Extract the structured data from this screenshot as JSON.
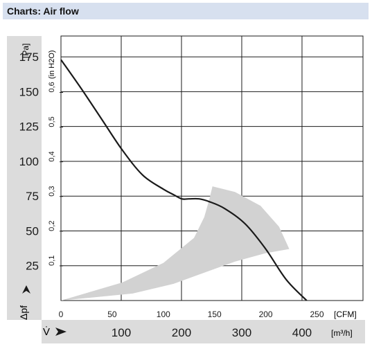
{
  "header": {
    "title": "Charts: Air flow"
  },
  "chart_data": {
    "type": "line",
    "y_unit_pa": "[Pa]",
    "y_unit_inh2o": "(in H2O)",
    "y_ticks_pa": [
      "25",
      "50",
      "75",
      "100",
      "125",
      "150",
      "175"
    ],
    "y_ticks_inh2o": [
      "0,1",
      "0,2",
      "0,3",
      "0,4",
      "0,5",
      "0,6"
    ],
    "y_symbol": "Δpf",
    "x_unit_cfm": "[CFM]",
    "x_unit_m3h": "[m³/h]",
    "x_ticks_cfm": [
      "0",
      "50",
      "100",
      "150",
      "200",
      "250"
    ],
    "x_ticks_m3h": [
      "100",
      "200",
      "300",
      "400"
    ],
    "x_symbol": "V̇",
    "xlim_cfm": [
      0,
      295
    ],
    "ylim_pa": [
      0,
      190
    ],
    "grid": true,
    "series": [
      {
        "x": [
          0,
          20,
          40,
          60,
          80,
          100,
          110,
          118,
          125,
          135,
          145,
          160,
          180,
          200,
          220,
          240
        ],
        "y": [
          173,
          152,
          130,
          108,
          90,
          80,
          76,
          73,
          73,
          73,
          71,
          66,
          55,
          37,
          15,
          0
        ]
      }
    ],
    "operating_region": {
      "upper": [
        [
          0,
          0
        ],
        [
          60,
          13
        ],
        [
          100,
          27
        ],
        [
          130,
          45
        ],
        [
          140,
          60
        ],
        [
          145,
          73
        ],
        [
          148,
          82
        ]
      ],
      "right": [
        [
          148,
          82
        ],
        [
          170,
          78
        ],
        [
          195,
          68
        ],
        [
          213,
          53
        ],
        [
          223,
          37
        ]
      ],
      "lower": [
        [
          223,
          37
        ],
        [
          200,
          34
        ],
        [
          170,
          28
        ],
        [
          140,
          20
        ],
        [
          110,
          12
        ],
        [
          70,
          5
        ],
        [
          0,
          0
        ]
      ]
    },
    "colors": {
      "curve": "#1a1a1a",
      "region": "#d2d2d2",
      "band": "#dcdcdc",
      "grid": "#1a1a1a"
    }
  }
}
